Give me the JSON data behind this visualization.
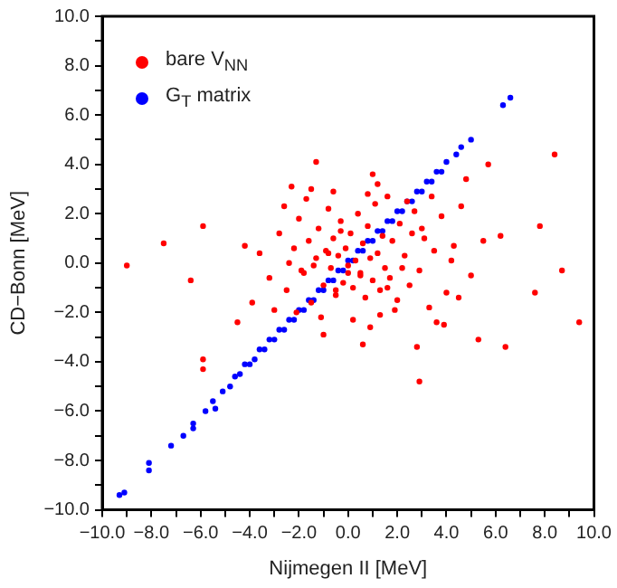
{
  "chart_data": {
    "type": "scatter",
    "xlabel": "Nijmegen II [MeV]",
    "ylabel": "CD−Bonn [MeV]",
    "xlim": [
      -10,
      10
    ],
    "ylim": [
      -10,
      10
    ],
    "xticks": [
      {
        "value": -10,
        "label": "−10.0"
      },
      {
        "value": -9,
        "label": null
      },
      {
        "value": -8,
        "label": "−8.0"
      },
      {
        "value": -7,
        "label": null
      },
      {
        "value": -6,
        "label": "−6.0"
      },
      {
        "value": -5,
        "label": null
      },
      {
        "value": -4,
        "label": "−4.0"
      },
      {
        "value": -3,
        "label": null
      },
      {
        "value": -2,
        "label": "−2.0"
      },
      {
        "value": -1,
        "label": null
      },
      {
        "value": 0,
        "label": "0.0"
      },
      {
        "value": 1,
        "label": null
      },
      {
        "value": 2,
        "label": "2.0"
      },
      {
        "value": 3,
        "label": null
      },
      {
        "value": 4,
        "label": "4.0"
      },
      {
        "value": 5,
        "label": null
      },
      {
        "value": 6,
        "label": "6.0"
      },
      {
        "value": 7,
        "label": null
      },
      {
        "value": 8,
        "label": "8.0"
      },
      {
        "value": 9,
        "label": null
      },
      {
        "value": 10,
        "label": "10.0"
      }
    ],
    "yticks": [
      {
        "value": -10,
        "label": "−10.0"
      },
      {
        "value": -9,
        "label": null
      },
      {
        "value": -8,
        "label": "−8.0"
      },
      {
        "value": -7,
        "label": null
      },
      {
        "value": -6,
        "label": "−6.0"
      },
      {
        "value": -5,
        "label": null
      },
      {
        "value": -4,
        "label": "−4.0"
      },
      {
        "value": -3,
        "label": null
      },
      {
        "value": -2,
        "label": "−2.0"
      },
      {
        "value": -1,
        "label": null
      },
      {
        "value": 0,
        "label": "0.0"
      },
      {
        "value": 1,
        "label": null
      },
      {
        "value": 2,
        "label": "2.0"
      },
      {
        "value": 3,
        "label": null
      },
      {
        "value": 4,
        "label": "4.0"
      },
      {
        "value": 5,
        "label": null
      },
      {
        "value": 6,
        "label": "6.0"
      },
      {
        "value": 7,
        "label": null
      },
      {
        "value": 8,
        "label": "8.0"
      },
      {
        "value": 9,
        "label": null
      },
      {
        "value": 10,
        "label": "10.0"
      }
    ],
    "grid": false,
    "legend": "top left",
    "marker": "circle",
    "series": [
      {
        "name": "bare V$_{NN}$",
        "color": "#ff0000",
        "x": [
          -9.0,
          -7.5,
          -6.4,
          -5.9,
          -5.9,
          -5.9,
          -4.5,
          -2.3,
          -1.3,
          1.0,
          4.8,
          5.7,
          6.2,
          7.8,
          8.4,
          9.4,
          8.7,
          7.6,
          6.4,
          5.3,
          2.9,
          0.6,
          -1.0,
          -3.6,
          -3.2,
          -2.8,
          -2.5,
          -2.2,
          -2.0,
          -1.8,
          -1.6,
          -1.5,
          -1.3,
          -1.2,
          -1.0,
          -0.9,
          -0.8,
          -0.7,
          -0.6,
          -0.5,
          -0.4,
          -0.3,
          -0.2,
          -0.1,
          0.0,
          0.1,
          0.2,
          0.3,
          0.4,
          0.5,
          0.6,
          0.7,
          0.8,
          0.9,
          1.0,
          1.1,
          1.2,
          1.3,
          1.4,
          1.5,
          1.6,
          1.7,
          1.8,
          2.0,
          2.1,
          2.3,
          2.5,
          2.7,
          2.9,
          3.1,
          3.3,
          3.5,
          3.8,
          4.0,
          4.3,
          4.6,
          5.0,
          -3.0,
          -2.6,
          -2.1,
          -1.7,
          -1.1,
          -0.6,
          0.2,
          0.8,
          1.3,
          1.9,
          2.4,
          3.0,
          3.6,
          4.2,
          -2.4,
          -1.4,
          -0.3,
          0.5,
          1.6,
          2.6,
          3.4,
          -1.9,
          -0.8,
          0.9,
          2.2,
          -4.2,
          -3.9,
          4.5,
          5.5,
          -0.5,
          1.2,
          0.0,
          -1.5,
          2.8,
          3.9
        ],
        "values": [
          -0.1,
          0.8,
          -0.7,
          1.5,
          -3.9,
          -4.3,
          -2.4,
          3.1,
          4.1,
          3.6,
          3.4,
          4.0,
          1.1,
          1.5,
          4.4,
          -2.4,
          -0.3,
          -1.2,
          -3.4,
          -3.1,
          -4.8,
          -3.3,
          -2.9,
          0.4,
          -0.6,
          1.2,
          -1.1,
          0.6,
          1.8,
          -0.4,
          0.9,
          -1.6,
          0.2,
          1.4,
          -0.9,
          0.5,
          2.2,
          -0.2,
          1.0,
          -1.3,
          0.3,
          1.7,
          -0.8,
          0.6,
          -0.4,
          1.2,
          -1.0,
          0.1,
          2.0,
          -0.5,
          0.8,
          -1.4,
          1.5,
          0.2,
          -0.7,
          2.4,
          0.4,
          -1.1,
          1.1,
          -0.2,
          2.7,
          -0.6,
          0.9,
          -1.5,
          1.6,
          0.3,
          -0.9,
          2.1,
          -0.3,
          1.0,
          -1.8,
          0.5,
          1.9,
          -1.2,
          0.7,
          2.3,
          -0.5,
          -1.9,
          2.3,
          -2.0,
          2.6,
          -2.2,
          2.9,
          -2.3,
          2.8,
          -2.1,
          -1.9,
          2.5,
          1.4,
          -2.4,
          0.1,
          0.0,
          -0.1,
          1.3,
          -0.4,
          -1.0,
          1.2,
          2.7,
          -0.3,
          0.4,
          -2.6,
          -0.2,
          0.7,
          -1.6,
          -1.4,
          0.9,
          -1.1,
          3.2,
          -0.1,
          3.0,
          -3.4,
          -2.5
        ]
      },
      {
        "name": "G$_{T}$ matrix",
        "color": "#0000ff",
        "x": [
          -9.3,
          -9.1,
          -8.1,
          -8.1,
          -7.2,
          -6.7,
          -6.3,
          -6.3,
          -5.8,
          -5.5,
          -5.4,
          -5.1,
          -4.8,
          -4.6,
          -4.4,
          -4.2,
          -4.0,
          -3.8,
          -3.6,
          -3.4,
          -3.2,
          -3.0,
          -2.8,
          -2.6,
          -2.4,
          -2.2,
          -2.0,
          -1.8,
          -1.6,
          -1.4,
          -1.2,
          -1.0,
          -0.8,
          -0.6,
          -0.4,
          -0.2,
          0.0,
          0.2,
          0.4,
          0.6,
          0.8,
          1.0,
          1.2,
          1.4,
          1.6,
          1.8,
          2.0,
          2.2,
          2.4,
          2.6,
          2.8,
          3.0,
          3.2,
          3.4,
          3.6,
          3.8,
          4.0,
          4.4,
          4.6,
          5.0,
          6.3,
          6.6
        ],
        "values": [
          -9.4,
          -9.3,
          -8.1,
          -8.4,
          -7.4,
          -7.0,
          -6.5,
          -6.7,
          -6.0,
          -5.6,
          -5.9,
          -5.2,
          -5.0,
          -4.6,
          -4.5,
          -4.1,
          -4.1,
          -3.9,
          -3.5,
          -3.5,
          -3.1,
          -3.1,
          -2.7,
          -2.7,
          -2.3,
          -2.3,
          -1.9,
          -1.9,
          -1.5,
          -1.5,
          -1.1,
          -1.1,
          -0.7,
          -0.7,
          -0.3,
          -0.3,
          0.1,
          0.1,
          0.5,
          0.5,
          0.9,
          0.9,
          1.3,
          1.3,
          1.7,
          1.7,
          2.1,
          2.1,
          2.5,
          2.5,
          2.9,
          2.9,
          3.3,
          3.3,
          3.7,
          3.7,
          4.1,
          4.4,
          4.7,
          5.0,
          6.4,
          6.7
        ]
      }
    ]
  }
}
